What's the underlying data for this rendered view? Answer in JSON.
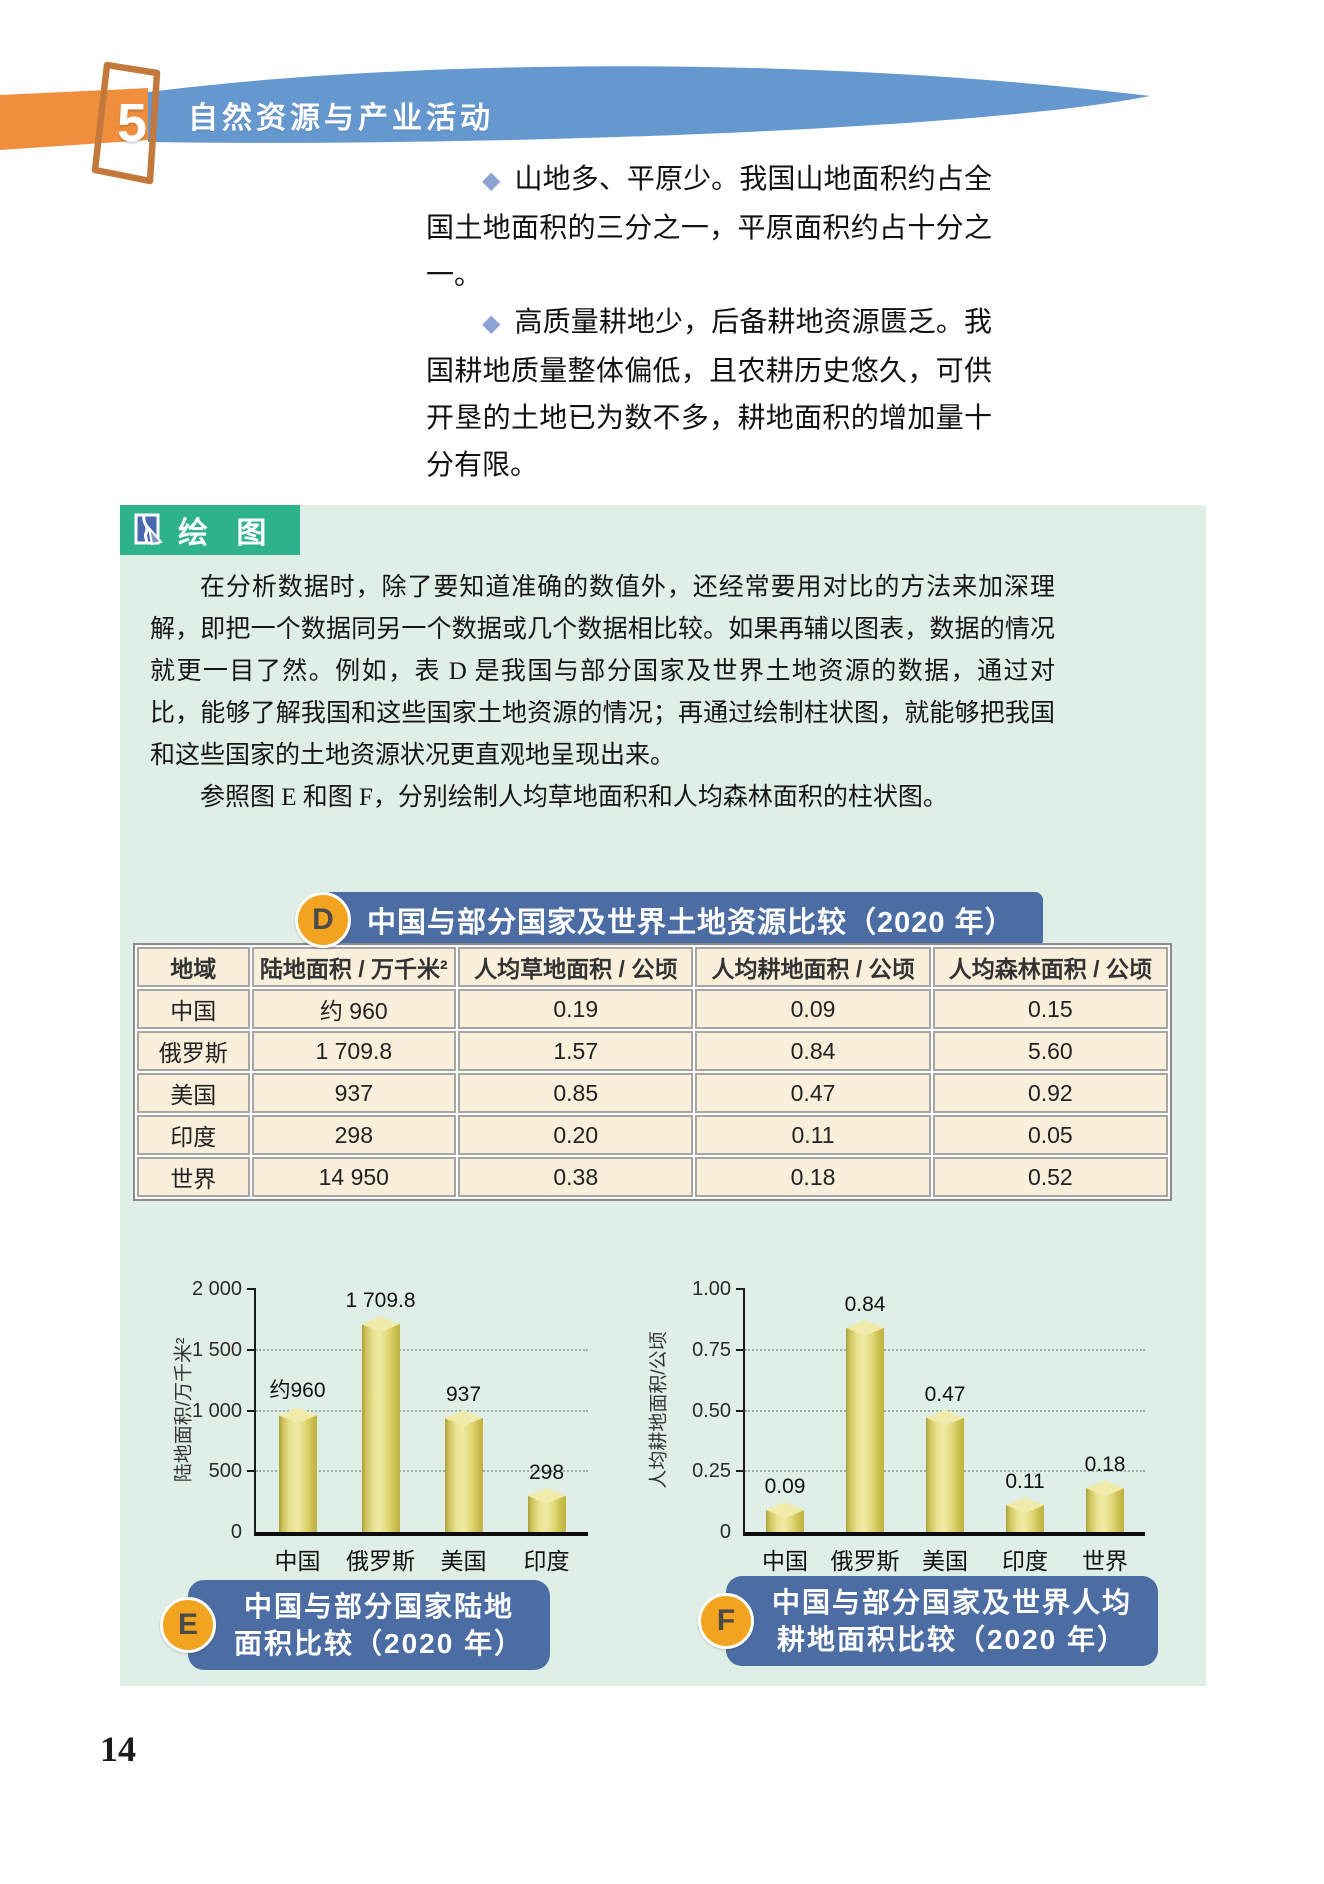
{
  "header": {
    "chapter_number": "5",
    "title": "自然资源与产业活动",
    "banner_color": "#6598cf",
    "accent_orange": "#ef8f3e"
  },
  "intro": {
    "bullet_glyph": "◆",
    "items": [
      "山地多、平原少。我国山地面积约占全国土地面积的三分之一，平原面积约占十分之一。",
      "高质量耕地少，后备耕地资源匮乏。我国耕地质量整体偏低，且农耕历史悠久，可供开垦的土地已为数不多，耕地面积的增加量十分有限。"
    ]
  },
  "huitu": {
    "label": "绘 图",
    "icon": "pen-drawing-icon",
    "tag_color": "#2eb28c",
    "panel_color": "#dfeee7",
    "paragraphs": [
      "在分析数据时，除了要知道准确的数值外，还经常要用对比的方法来加深理解，即把一个数据同另一个数据或几个数据相比较。如果再辅以图表，数据的情况就更一目了然。例如，表 D 是我国与部分国家及世界土地资源的数据，通过对比，能够了解我国和这些国家土地资源的情况；再通过绘制柱状图，就能够把我国和这些国家的土地资源状况更直观地呈现出来。",
      "参照图 E 和图 F，分别绘制人均草地面积和人均森林面积的柱状图。"
    ]
  },
  "table_d": {
    "letter": "D",
    "title": "中国与部分国家及世界土地资源比较（2020 年）",
    "banner_color": "#4c6da3",
    "cell_color": "#faefdb",
    "columns": [
      "地域",
      "陆地面积 / 万千米²",
      "人均草地面积 / 公顷",
      "人均耕地面积 / 公顷",
      "人均森林面积 / 公顷"
    ],
    "rows": [
      [
        "中国",
        "约 960",
        "0.19",
        "0.09",
        "0.15"
      ],
      [
        "俄罗斯",
        "1 709.8",
        "1.57",
        "0.84",
        "5.60"
      ],
      [
        "美国",
        "937",
        "0.85",
        "0.47",
        "0.92"
      ],
      [
        "印度",
        "298",
        "0.20",
        "0.11",
        "0.05"
      ],
      [
        "世界",
        "14 950",
        "0.38",
        "0.18",
        "0.52"
      ]
    ]
  },
  "chart_data": [
    {
      "id": "E",
      "type": "bar",
      "title": "中国与部分国家陆地面积比较（2020 年）",
      "categories": [
        "中国",
        "俄罗斯",
        "美国",
        "印度"
      ],
      "values": [
        960,
        1709.8,
        937,
        298
      ],
      "bar_labels": [
        "约960",
        "1 709.8",
        "937",
        "298"
      ],
      "xlabel": "",
      "ylabel": "陆地面积/万千米²",
      "ylim": [
        0,
        2000
      ],
      "yticks": [
        0,
        500,
        1000,
        1500,
        2000
      ],
      "ytick_labels": [
        "0",
        "500",
        "1 000",
        "1 500",
        "2 000"
      ],
      "grid": "horizontal-dotted",
      "legend": "none",
      "bar_color": "#e3da7a"
    },
    {
      "id": "F",
      "type": "bar",
      "title": "中国与部分国家及世界人均耕地面积比较（2020 年）",
      "categories": [
        "中国",
        "俄罗斯",
        "美国",
        "印度",
        "世界"
      ],
      "values": [
        0.09,
        0.84,
        0.47,
        0.11,
        0.18
      ],
      "bar_labels": [
        "0.09",
        "0.84",
        "0.47",
        "0.11",
        "0.18"
      ],
      "xlabel": "",
      "ylabel": "人均耕地面积/公顷",
      "ylim": [
        0,
        1
      ],
      "yticks": [
        0,
        0.25,
        0.5,
        0.75,
        1
      ],
      "ytick_labels": [
        "0",
        "0.25",
        "0.50",
        "0.75",
        "1.00"
      ],
      "grid": "horizontal-dotted",
      "legend": "none",
      "bar_color": "#e3da7a"
    }
  ],
  "captions": [
    {
      "letter": "E",
      "lines": [
        "中国与部分国家陆地",
        "面积比较（2020 年）"
      ]
    },
    {
      "letter": "F",
      "lines": [
        "中国与部分国家及世界人均",
        "耕地面积比较（2020 年）"
      ]
    }
  ],
  "page": {
    "number": "14"
  }
}
